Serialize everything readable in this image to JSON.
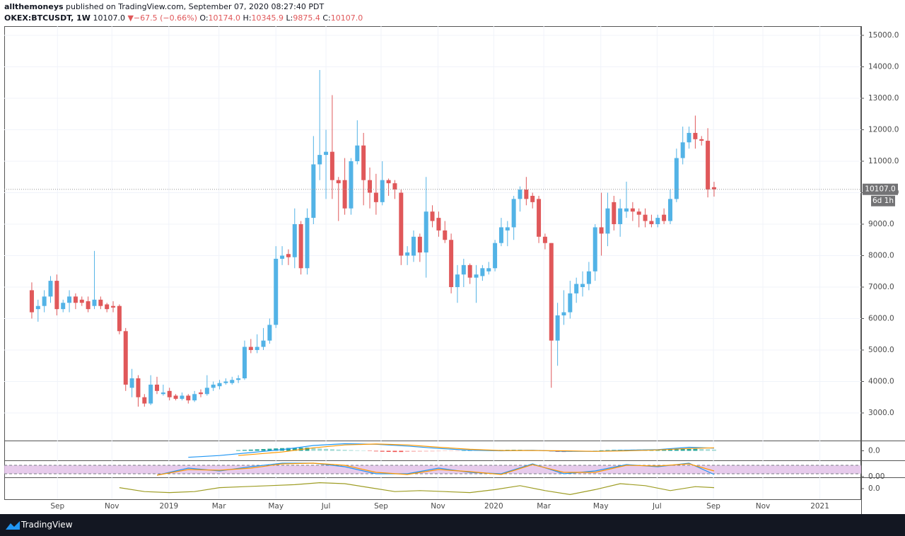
{
  "header": {
    "author": "allthemoneys",
    "published": "published on TradingView.com, September 07, 2020 08:27:40 PDT",
    "symbol": "OKEX:BTCUSDT, 1W",
    "last": "10107.0",
    "change": "−67.5 (−0.66%)",
    "ohlc": [
      {
        "key": "O:",
        "value": "10174.0"
      },
      {
        "key": "H:",
        "value": "10345.9"
      },
      {
        "key": "L:",
        "value": "9875.4"
      },
      {
        "key": "C:",
        "value": "10107.0"
      }
    ]
  },
  "footer": {
    "brand": "TradingView"
  },
  "chart_data": {
    "type": "candlestick",
    "up_color": "#53b3e6",
    "down_color": "#e0585a",
    "grid": true,
    "xlim": [
      -4.4,
      132.5
    ],
    "ylim": [
      2146,
      15292
    ],
    "xticks": [
      {
        "value": 4.1,
        "label": "Sep"
      },
      {
        "value": 12.8,
        "label": "Nov"
      },
      {
        "value": 21.9,
        "label": "2019"
      },
      {
        "value": 29.9,
        "label": "Mar"
      },
      {
        "value": 39.0,
        "label": "May"
      },
      {
        "value": 47.0,
        "label": "Jul"
      },
      {
        "value": 55.8,
        "label": "Sep"
      },
      {
        "value": 64.9,
        "label": "Nov"
      },
      {
        "value": 73.8,
        "label": "2020"
      },
      {
        "value": 81.8,
        "label": "Mar"
      },
      {
        "value": 90.9,
        "label": "May"
      },
      {
        "value": 99.9,
        "label": "Jul"
      },
      {
        "value": 108.9,
        "label": "Sep"
      },
      {
        "value": 116.8,
        "label": "Nov"
      },
      {
        "value": 125.9,
        "label": "2021"
      }
    ],
    "yticks": [
      {
        "value": 3000,
        "label": "3000.0"
      },
      {
        "value": 4000,
        "label": "4000.0"
      },
      {
        "value": 5000,
        "label": "5000.0"
      },
      {
        "value": 6000,
        "label": "6000.0"
      },
      {
        "value": 7000,
        "label": "7000.0"
      },
      {
        "value": 8000,
        "label": "8000.0"
      },
      {
        "value": 9000,
        "label": "9000.0"
      },
      {
        "value": 10000,
        "label": "10000.0"
      },
      {
        "value": 11000,
        "label": "11000.0"
      },
      {
        "value": 12000,
        "label": "12000.0"
      },
      {
        "value": 13000,
        "label": "13000.0"
      },
      {
        "value": 14000,
        "label": "14000.0"
      },
      {
        "value": 15000,
        "label": "15000.0"
      }
    ],
    "price_label": {
      "value": 10107,
      "label": "10107.0"
    },
    "countdown": "6d 1h",
    "open": [
      6900,
      6300,
      6400,
      6700,
      7200,
      6300,
      6500,
      6700,
      6600,
      6550,
      6400,
      6600,
      6450,
      6400,
      6400,
      5600,
      3800,
      4100,
      3500,
      3300,
      3900,
      3600,
      3700,
      3550,
      3450,
      3550,
      3400,
      3650,
      3600,
      3800,
      3850,
      3950,
      3950,
      4050,
      4100,
      5100,
      5000,
      5100,
      5300,
      5800,
      7900,
      8050,
      7950,
      9000,
      7600,
      9200,
      10900,
      11200,
      11300,
      10400,
      10400,
      9500,
      11000,
      11500,
      10400,
      10000,
      9700,
      10400,
      10300,
      10000,
      8000,
      8000,
      8600,
      8100,
      9400,
      9200,
      8800,
      8500,
      7000,
      7400,
      7700,
      7300,
      7350,
      7500,
      7600,
      8400,
      8800,
      8900,
      9800,
      10100,
      9900,
      9800,
      8600,
      8400,
      5300,
      6100,
      6200,
      6800,
      7000,
      7100,
      7500,
      8900,
      8700,
      9700,
      9000,
      9400,
      9500,
      9400,
      9300,
      9100,
      9000,
      9300,
      9100,
      9800,
      11100,
      11600,
      11900,
      11700,
      11650,
      10174
    ],
    "high": [
      7150,
      6600,
      6900,
      7350,
      7400,
      6600,
      6900,
      6800,
      6700,
      6700,
      8150,
      6700,
      6500,
      6550,
      6450,
      5700,
      4400,
      4200,
      3600,
      4200,
      4150,
      3900,
      3800,
      3600,
      3650,
      3600,
      3700,
      3750,
      4200,
      4000,
      4050,
      4100,
      4150,
      4200,
      5300,
      5350,
      5500,
      5700,
      6000,
      8300,
      8300,
      8200,
      9500,
      9100,
      9500,
      11800,
      13900,
      12000,
      13100,
      10500,
      11100,
      11100,
      12300,
      11900,
      10800,
      10600,
      11000,
      10450,
      10400,
      10100,
      8300,
      8800,
      8700,
      10500,
      9600,
      9400,
      9100,
      8700,
      7700,
      7900,
      7750,
      7700,
      7700,
      7800,
      8500,
      9200,
      9100,
      9900,
      10200,
      10500,
      10000,
      9900,
      8700,
      8400,
      6500,
      6900,
      7200,
      7300,
      7500,
      7800,
      9000,
      10000,
      10000,
      9900,
      9800,
      10350,
      9700,
      9500,
      9500,
      9300,
      9300,
      9500,
      10100,
      11400,
      12100,
      12100,
      12450,
      11800,
      12050,
      10345.9
    ],
    "low": [
      6000,
      5900,
      6200,
      6500,
      6100,
      6200,
      6200,
      6300,
      6400,
      6200,
      6300,
      6300,
      6200,
      6200,
      5500,
      3700,
      3500,
      3200,
      3200,
      3250,
      3600,
      3550,
      3400,
      3400,
      3400,
      3300,
      3350,
      3500,
      3550,
      3700,
      3750,
      3900,
      3900,
      3950,
      4050,
      4900,
      4900,
      5000,
      5200,
      5700,
      7700,
      7700,
      7600,
      7400,
      7400,
      9000,
      10400,
      9800,
      9800,
      9100,
      9300,
      9300,
      10900,
      9600,
      9500,
      9300,
      9600,
      9900,
      9800,
      7700,
      7700,
      7800,
      7800,
      7300,
      8900,
      8600,
      8400,
      6800,
      6500,
      7000,
      7100,
      6500,
      7200,
      7400,
      7500,
      8300,
      8300,
      8500,
      9400,
      9600,
      9500,
      8400,
      8200,
      3800,
      4500,
      5800,
      6000,
      6500,
      6700,
      6900,
      7200,
      8000,
      8300,
      8800,
      8600,
      9200,
      9100,
      8900,
      8900,
      8900,
      8900,
      9000,
      9000,
      9700,
      10900,
      11400,
      11400,
      11500,
      9850,
      9875.4
    ],
    "close": [
      6200,
      6400,
      6700,
      7200,
      6300,
      6500,
      6700,
      6500,
      6500,
      6300,
      6600,
      6400,
      6300,
      6350,
      5600,
      3900,
      4100,
      3500,
      3300,
      3900,
      3700,
      3650,
      3500,
      3450,
      3550,
      3400,
      3600,
      3600,
      3800,
      3900,
      3950,
      4000,
      4050,
      4100,
      5100,
      5000,
      5100,
      5300,
      5800,
      7900,
      8000,
      7950,
      9000,
      7600,
      9200,
      10900,
      11200,
      11300,
      10400,
      10300,
      9500,
      11000,
      11500,
      10400,
      10000,
      9700,
      10400,
      10300,
      10100,
      8000,
      8100,
      8600,
      8100,
      9400,
      9100,
      8800,
      8500,
      7000,
      7400,
      7700,
      7300,
      7400,
      7600,
      7600,
      8400,
      8900,
      8900,
      9800,
      10100,
      9800,
      9700,
      8600,
      8400,
      5300,
      6100,
      6200,
      6800,
      7100,
      7100,
      7500,
      8900,
      8700,
      9500,
      9000,
      9500,
      9500,
      9400,
      9300,
      9100,
      9000,
      9200,
      9100,
      9800,
      11100,
      11600,
      11900,
      11700,
      11650,
      10100,
      10107
    ],
    "indicators": [
      {
        "ylim": [
          -1500,
          1500
        ],
        "yticks": [
          {
            "value": 0,
            "label": "0.0"
          }
        ],
        "histogram": {
          "pos_color": "#26a69a",
          "neg_color": "#ef5350",
          "values": [
            null,
            null,
            null,
            null,
            null,
            null,
            null,
            null,
            null,
            null,
            null,
            null,
            null,
            null,
            null,
            null,
            null,
            null,
            null,
            null,
            null,
            null,
            null,
            null,
            null,
            null,
            null,
            null,
            null,
            null,
            null,
            null,
            null,
            100,
            150,
            200,
            250,
            300,
            350,
            400,
            450,
            480,
            500,
            520,
            540,
            450,
            380,
            320,
            260,
            200,
            160,
            120,
            80,
            40,
            -60,
            -100,
            -150,
            -180,
            -200,
            -200,
            -180,
            -160,
            -140,
            -120,
            -100,
            -80,
            -60,
            -40,
            -20,
            20,
            40,
            60,
            80,
            100,
            120,
            140,
            160,
            170,
            170,
            150,
            120,
            80,
            -20,
            -100,
            -180,
            -200,
            -180,
            -140,
            -100,
            -60,
            40,
            80,
            120,
            150,
            170,
            180,
            190,
            200,
            210,
            220,
            230,
            240,
            260,
            280,
            300,
            320,
            320,
            300,
            260,
            200
          ]
        },
        "series": [
          {
            "color": "#2196f3",
            "x": [
              25,
              30,
              35,
              40,
              45,
              50,
              55,
              60,
              65,
              70,
              75,
              80,
              85,
              90,
              95,
              100,
              105,
              109
            ],
            "values": [
              -1100,
              -800,
              -300,
              200,
              900,
              1200,
              1100,
              800,
              400,
              100,
              0,
              100,
              -100,
              -100,
              100,
              200,
              600,
              450
            ]
          },
          {
            "color": "#ff9800",
            "x": [
              33,
              40,
              45,
              50,
              55,
              60,
              65,
              70,
              75,
              80,
              85,
              90,
              95,
              100,
              105,
              109
            ],
            "values": [
              -800,
              -200,
              500,
              1000,
              1150,
              1000,
              600,
              250,
              50,
              50,
              0,
              -100,
              0,
              150,
              400,
              500
            ]
          }
        ]
      },
      {
        "ylim": [
          0,
          100
        ],
        "yticks": [
          {
            "value": 0,
            "label": "0.00"
          }
        ],
        "bands": [
          20,
          80
        ],
        "band_color": "#e1bee7",
        "series": [
          {
            "color": "#2196f3",
            "x": [
              20,
              25,
              30,
              35,
              40,
              45,
              50,
              55,
              60,
              65,
              70,
              75,
              80,
              85,
              90,
              95,
              100,
              105,
              109
            ],
            "values": [
              10,
              60,
              40,
              70,
              95,
              95,
              70,
              20,
              20,
              60,
              30,
              20,
              90,
              20,
              40,
              85,
              70,
              95,
              15
            ]
          },
          {
            "color": "#ff9800",
            "x": [
              20,
              25,
              30,
              35,
              40,
              45,
              50,
              55,
              60,
              65,
              70,
              75,
              80,
              85,
              90,
              95,
              100,
              105,
              109
            ],
            "values": [
              10,
              50,
              45,
              60,
              90,
              95,
              80,
              30,
              15,
              50,
              35,
              15,
              85,
              30,
              30,
              80,
              75,
              90,
              40
            ]
          }
        ]
      },
      {
        "ylim": [
          -1,
          1
        ],
        "yticks": [
          {
            "value": 0,
            "label": "0.0"
          }
        ],
        "series": [
          {
            "color": "#9e9d24",
            "x": [
              14,
              18,
              22,
              26,
              30,
              34,
              38,
              42,
              46,
              50,
              54,
              58,
              62,
              66,
              70,
              74,
              78,
              82,
              86,
              90,
              94,
              98,
              102,
              106,
              109
            ],
            "values": [
              0.1,
              -0.3,
              -0.4,
              -0.3,
              0.1,
              0.2,
              0.3,
              0.4,
              0.6,
              0.5,
              0.1,
              -0.3,
              -0.2,
              -0.3,
              -0.4,
              -0.1,
              0.3,
              -0.2,
              -0.6,
              -0.1,
              0.5,
              0.3,
              -0.2,
              0.2,
              0.1
            ]
          }
        ]
      }
    ]
  }
}
